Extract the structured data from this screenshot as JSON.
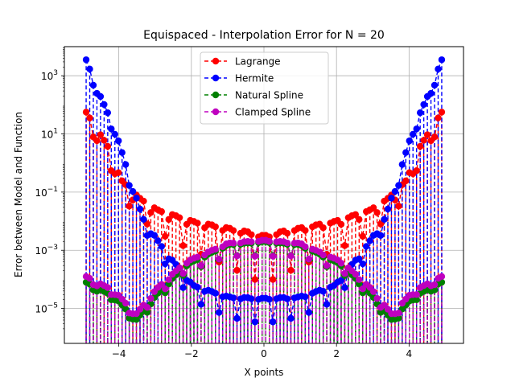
{
  "chart_data": {
    "type": "line",
    "title": "Equispaced - Interpolation Error for N = 20",
    "xlabel": "X points",
    "ylabel": "Error between Model and Function",
    "xlim": [
      -5.5,
      5.5
    ],
    "ylim_log10": [
      -6.2,
      1.0
    ],
    "ylim_exp": [
      -6.2,
      4.0
    ],
    "yscale": "log",
    "grid": true,
    "legend_position": "top-center",
    "x_ticks": [
      -4,
      -2,
      0,
      2,
      4
    ],
    "x_tick_labels": [
      "−4",
      "−2",
      "0",
      "2",
      "4"
    ],
    "y_ticks_exp": [
      -5,
      -3,
      -1,
      1,
      3
    ],
    "y_tick_labels": [
      {
        "base": "10",
        "exp": "−5"
      },
      {
        "base": "10",
        "exp": "−3"
      },
      {
        "base": "10",
        "exp": "−1"
      },
      {
        "base": "10",
        "exp": "1"
      },
      {
        "base": "10",
        "exp": "3"
      }
    ],
    "x_range": [
      -4.9,
      4.9
    ],
    "num_points": 100,
    "series": [
      {
        "name": "Lagrange",
        "color": "#ff0000",
        "shape_log10_profile": [
          [
            0.0,
            1.75
          ],
          [
            0.06,
            0.6
          ],
          [
            0.1,
            -0.6
          ],
          [
            0.15,
            -1.2
          ],
          [
            0.2,
            -1.6
          ],
          [
            0.3,
            -2.0
          ],
          [
            0.45,
            -2.35
          ],
          [
            0.5,
            -2.5
          ]
        ],
        "dip_period": 0.49,
        "dip_depth": 4.8
      },
      {
        "name": "Hermite",
        "color": "#0000ff",
        "shape_log10_profile": [
          [
            0.0,
            3.55
          ],
          [
            0.04,
            2.3
          ],
          [
            0.08,
            1.2
          ],
          [
            0.12,
            -0.4
          ],
          [
            0.16,
            -1.9
          ],
          [
            0.22,
            -3.0
          ],
          [
            0.3,
            -4.2
          ],
          [
            0.4,
            -4.6
          ],
          [
            0.5,
            -4.65
          ]
        ],
        "dip_period": 0.49,
        "dip_depth": 2.5
      },
      {
        "name": "Natural Spline",
        "color": "#008000",
        "shape_log10_profile": [
          [
            0.0,
            -4.1
          ],
          [
            0.08,
            -4.6
          ],
          [
            0.14,
            -5.4
          ],
          [
            0.2,
            -4.5
          ],
          [
            0.28,
            -3.5
          ],
          [
            0.4,
            -2.8
          ],
          [
            0.5,
            -2.7
          ]
        ],
        "dip_period": 0.49,
        "dip_depth": 1.4
      },
      {
        "name": "Clamped Spline",
        "color": "#bf00bf",
        "shape_log10_profile": [
          [
            0.0,
            -3.9
          ],
          [
            0.08,
            -4.4
          ],
          [
            0.14,
            -5.2
          ],
          [
            0.2,
            -4.3
          ],
          [
            0.28,
            -3.4
          ],
          [
            0.4,
            -2.75
          ],
          [
            0.5,
            -2.65
          ]
        ],
        "dip_period": 0.49,
        "dip_depth": 1.6
      }
    ]
  }
}
